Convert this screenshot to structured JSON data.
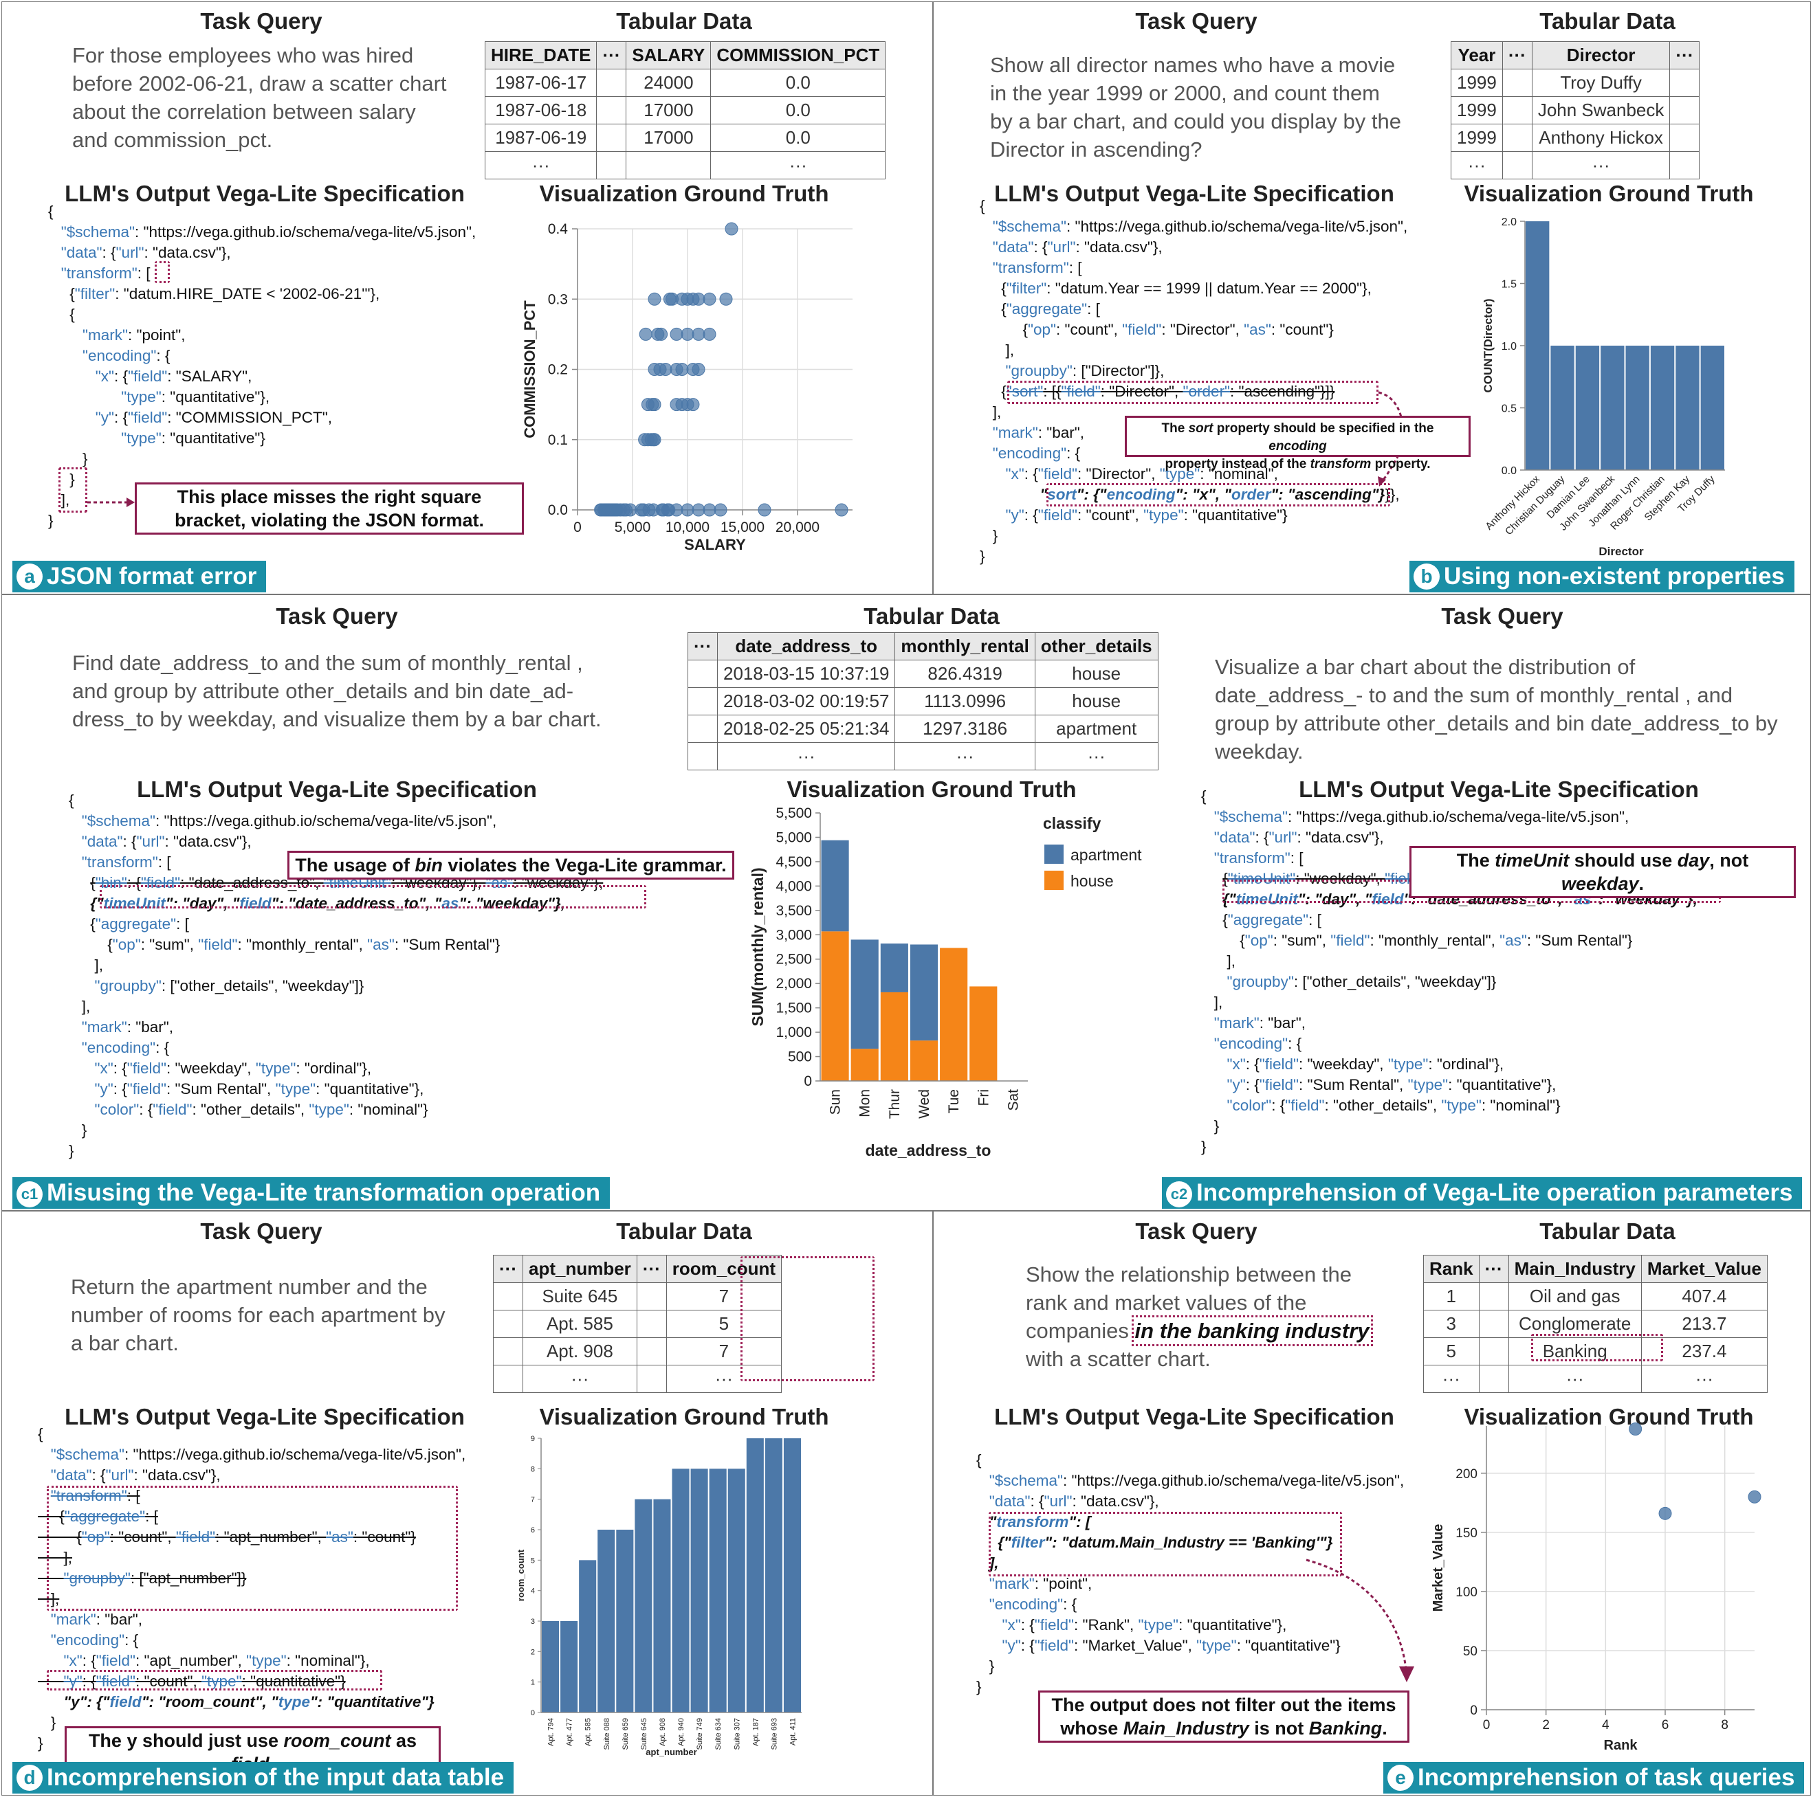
{
  "colors": {
    "accent": "#1a8fa6",
    "note_border": "#8a1d4f",
    "dotted": "#a0255a",
    "bar": "#4c78a8",
    "orange": "#f58518",
    "key": "#3b78b5"
  },
  "common": {
    "task_query": "Task Query",
    "tabular_data": "Tabular Data",
    "llm_output": "LLM's Output Vega-Lite Specification",
    "vis_truth": "Visualization Ground Truth",
    "ellipsis": "···"
  },
  "panel_a": {
    "badge": "a",
    "label": "JSON format error",
    "query": "For those employees who was hired before 2002-06-21, draw a scatter chart about the correlation between salary and commission_pct.",
    "table": {
      "columns": [
        "HIRE_DATE",
        "···",
        "SALARY",
        "COMMISSION_PCT"
      ],
      "rows": [
        [
          "1987-06-17",
          "",
          "24000",
          "0.0"
        ],
        [
          "1987-06-18",
          "",
          "17000",
          "0.0"
        ],
        [
          "1987-06-19",
          "",
          "17000",
          "0.0"
        ],
        [
          "···",
          "",
          "",
          "···"
        ]
      ]
    },
    "note": "This place misses the right square bracket, violating the JSON format."
  },
  "panel_b": {
    "badge": "b",
    "label": "Using non-existent properties",
    "query": "Show all director names who have a movie in the year 1999 or 2000, and count them by a bar chart, and could you display by the Director in ascending?",
    "table": {
      "columns": [
        "Year",
        "···",
        "Director",
        "···"
      ],
      "rows": [
        [
          "1999",
          "",
          "Troy Duffy",
          ""
        ],
        [
          "1999",
          "",
          "John Swanbeck",
          ""
        ],
        [
          "1999",
          "",
          "Anthony Hickox",
          ""
        ],
        [
          "···",
          "",
          "···",
          ""
        ]
      ]
    },
    "note_line1_a": "The ",
    "note_line1_em": "sort",
    "note_line1_b": " property should be specified in the ",
    "note_line1_em2": "encoding",
    "note_line2_a": "property instead of the ",
    "note_line2_em": "transform",
    "note_line2_b": " property."
  },
  "panel_c": {
    "badge1": "c1",
    "label1": "Misusing the Vega-Lite transformation operation",
    "badge2": "c2",
    "label2": "Incomprehension of Vega-Lite operation parameters",
    "query1": "Find date_address_to and the sum of monthly_rental , and group by attribute other_details and bin date_ad- dress_to by weekday, and visualize them by a bar chart.",
    "query2": "Visualize a bar chart about the distribution of date_address_- to and the sum of monthly_rental , and group by attribute other_details and bin date_address_to by weekday.",
    "table": {
      "columns": [
        "···",
        "date_address_to",
        "monthly_rental",
        "other_details"
      ],
      "rows": [
        [
          "",
          "2018-03-15 10:37:19",
          "826.4319",
          "house"
        ],
        [
          "",
          "2018-03-02 00:19:57",
          "1113.0996",
          "house"
        ],
        [
          "",
          "2018-02-25 05:21:34",
          "1297.3186",
          "apartment"
        ],
        [
          "",
          "···",
          "···",
          "···"
        ]
      ]
    },
    "note1_a": "The usage of ",
    "note1_em": "bin",
    "note1_b": " violates the Vega-Lite grammar.",
    "note2_a": "The ",
    "note2_em": "timeUnit",
    "note2_b": " should use ",
    "note2_em2": "day",
    "note2_c": ", not ",
    "note2_em3": "weekday",
    "note2_d": "."
  },
  "panel_d": {
    "badge": "d",
    "label": "Incomprehension of the input data table",
    "query": "Return the apartment number and the number of rooms for each apartment by a bar chart.",
    "table": {
      "columns": [
        "···",
        "apt_number",
        "···",
        "room_count"
      ],
      "rows": [
        [
          "",
          "Suite 645",
          "",
          "7"
        ],
        [
          "",
          "Apt. 585",
          "",
          "5"
        ],
        [
          "",
          "Apt. 908",
          "",
          "7"
        ],
        [
          "",
          "···",
          "",
          "···"
        ]
      ]
    },
    "note_a": "The y should just use ",
    "note_em": "room_count",
    "note_b": " as ",
    "note_em2": "field",
    "note_c": "."
  },
  "panel_e": {
    "badge": "e",
    "label": "Incomprehension of task queries",
    "query_a": "Show the relationship between the rank and market values of the companies ",
    "query_em": "in the banking industry",
    "query_b": " with a scatter chart.",
    "table": {
      "columns": [
        "Rank",
        "···",
        "Main_Industry",
        "Market_Value"
      ],
      "rows": [
        [
          "1",
          "",
          "Oil and gas",
          "407.4"
        ],
        [
          "3",
          "",
          "Conglomerate",
          "213.7"
        ],
        [
          "5",
          "",
          "Banking",
          "237.4"
        ],
        [
          "···",
          "",
          "···",
          "···"
        ]
      ]
    },
    "note_line1": "The output does not filter out the items",
    "note_line2_a": "whose ",
    "note_line2_em": "Main_Industry",
    "note_line2_b": " is not ",
    "note_line2_em2": "Banking",
    "note_line2_c": "."
  },
  "chart_data": [
    {
      "id": "a",
      "type": "scatter",
      "xlabel": "SALARY",
      "ylabel": "COMMISSION_PCT",
      "xlim": [
        0,
        25000
      ],
      "ylim": [
        0,
        0.4
      ],
      "xticks": [
        0,
        5000,
        10000,
        15000,
        20000
      ],
      "xtick_labels": [
        "0",
        "5,000",
        "10,000",
        "15,000",
        "20,000"
      ],
      "yticks": [
        0,
        0.1,
        0.2,
        0.3,
        0.4
      ],
      "ytick_labels": [
        "0.0",
        "0.1",
        "0.2",
        "0.3",
        "0.4"
      ],
      "points": [
        [
          2100,
          0
        ],
        [
          2200,
          0
        ],
        [
          2400,
          0
        ],
        [
          2500,
          0
        ],
        [
          2600,
          0
        ],
        [
          2700,
          0
        ],
        [
          2800,
          0
        ],
        [
          2900,
          0
        ],
        [
          3000,
          0
        ],
        [
          3100,
          0
        ],
        [
          3200,
          0
        ],
        [
          3300,
          0
        ],
        [
          3400,
          0
        ],
        [
          3500,
          0
        ],
        [
          3600,
          0
        ],
        [
          3900,
          0
        ],
        [
          4200,
          0
        ],
        [
          4400,
          0
        ],
        [
          4800,
          0
        ],
        [
          5800,
          0
        ],
        [
          6000,
          0
        ],
        [
          6500,
          0
        ],
        [
          6900,
          0
        ],
        [
          7700,
          0
        ],
        [
          7800,
          0
        ],
        [
          8200,
          0
        ],
        [
          8300,
          0
        ],
        [
          9000,
          0
        ],
        [
          10000,
          0
        ],
        [
          11000,
          0
        ],
        [
          12000,
          0
        ],
        [
          13000,
          0
        ],
        [
          17000,
          0
        ],
        [
          24000,
          0
        ],
        [
          14000,
          0.4
        ],
        [
          13500,
          0.3
        ],
        [
          12000,
          0.3
        ],
        [
          11000,
          0.3
        ],
        [
          10500,
          0.3
        ],
        [
          10000,
          0.3
        ],
        [
          9500,
          0.3
        ],
        [
          8600,
          0.3
        ],
        [
          8400,
          0.3
        ],
        [
          7000,
          0.3
        ],
        [
          12000,
          0.25
        ],
        [
          11000,
          0.25
        ],
        [
          10000,
          0.25
        ],
        [
          9000,
          0.25
        ],
        [
          7300,
          0.25
        ],
        [
          7600,
          0.25
        ],
        [
          6200,
          0.25
        ],
        [
          11000,
          0.2
        ],
        [
          10500,
          0.2
        ],
        [
          9500,
          0.2
        ],
        [
          9000,
          0.2
        ],
        [
          8000,
          0.2
        ],
        [
          7500,
          0.2
        ],
        [
          7000,
          0.2
        ],
        [
          10500,
          0.15
        ],
        [
          10000,
          0.15
        ],
        [
          9500,
          0.15
        ],
        [
          7000,
          0.15
        ],
        [
          6800,
          0.15
        ],
        [
          6400,
          0.15
        ],
        [
          9000,
          0.15
        ],
        [
          6400,
          0.1
        ],
        [
          6100,
          0.1
        ],
        [
          7000,
          0.1
        ],
        [
          6700,
          0.1
        ],
        [
          6900,
          0.1
        ]
      ]
    },
    {
      "id": "b",
      "type": "bar",
      "xlabel": "Director",
      "ylabel": "COUNT(Director)",
      "ylim": [
        0,
        2
      ],
      "yticks": [
        0,
        0.5,
        1,
        1.5,
        2
      ],
      "ytick_labels": [
        "0.0",
        "0.5",
        "1.0",
        "1.5",
        "2.0"
      ],
      "categories": [
        "Anthony Hickox",
        "Christian Duguay",
        "Damian Lee",
        "John Swanbeck",
        "Jonathan Lynn",
        "Roger Christian",
        "Stephen Kay",
        "Troy Duffy"
      ],
      "values": [
        2,
        1,
        1,
        1,
        1,
        1,
        1,
        1
      ]
    },
    {
      "id": "c",
      "type": "bar",
      "stacked": true,
      "xlabel": "date_address_to",
      "ylabel": "SUM(monthly_rental)",
      "ylim": [
        0,
        5500
      ],
      "yticks": [
        0,
        500,
        1000,
        1500,
        2000,
        2500,
        3000,
        3500,
        4000,
        4500,
        5000,
        5500
      ],
      "ytick_labels": [
        "0",
        "500",
        "1,000",
        "1,500",
        "2,000",
        "2,500",
        "3,000",
        "3,500",
        "4,000",
        "4,500",
        "5,000",
        "5,500"
      ],
      "categories": [
        "Sun",
        "Mon",
        "Thur",
        "Wed",
        "Tue",
        "Fri",
        "Sat"
      ],
      "legend_title": "classify",
      "series": [
        {
          "name": "apartment",
          "values": [
            1870,
            2240,
            1000,
            1970,
            0,
            0,
            0
          ]
        },
        {
          "name": "house",
          "values": [
            3070,
            660,
            1820,
            830,
            2730,
            1940,
            0
          ]
        }
      ]
    },
    {
      "id": "d",
      "type": "bar",
      "xlabel": "apt_number",
      "ylabel": "room_count",
      "ylim": [
        0,
        9
      ],
      "yticks": [
        0,
        1,
        2,
        3,
        4,
        5,
        6,
        7,
        8,
        9
      ],
      "ytick_labels": [
        "0",
        "1",
        "2",
        "3",
        "4",
        "5",
        "6",
        "7",
        "8",
        "9"
      ],
      "categories": [
        "Apt. 794",
        "Apt. 477",
        "Apt. 585",
        "Suite 088",
        "Suite 659",
        "Suite 645",
        "Apt. 908",
        "Apt. 940",
        "Suite 749",
        "Suite 634",
        "Suite 307",
        "Apt. 187",
        "Suite 693",
        "Apt. 411"
      ],
      "values": [
        3,
        3,
        5,
        6,
        6,
        7,
        7,
        8,
        8,
        8,
        8,
        9,
        9,
        9
      ]
    },
    {
      "id": "e",
      "type": "scatter",
      "xlabel": "Rank",
      "ylabel": "Market_Value",
      "xlim": [
        0,
        9
      ],
      "ylim": [
        0,
        240
      ],
      "xticks": [
        0,
        2,
        4,
        6,
        8
      ],
      "xtick_labels": [
        "0",
        "2",
        "4",
        "6",
        "8"
      ],
      "yticks": [
        0,
        50,
        100,
        150,
        200
      ],
      "ytick_labels": [
        "0",
        "50",
        "100",
        "150",
        "200"
      ],
      "points": [
        [
          5,
          237.4
        ],
        [
          6,
          166
        ],
        [
          9,
          180
        ]
      ]
    }
  ]
}
